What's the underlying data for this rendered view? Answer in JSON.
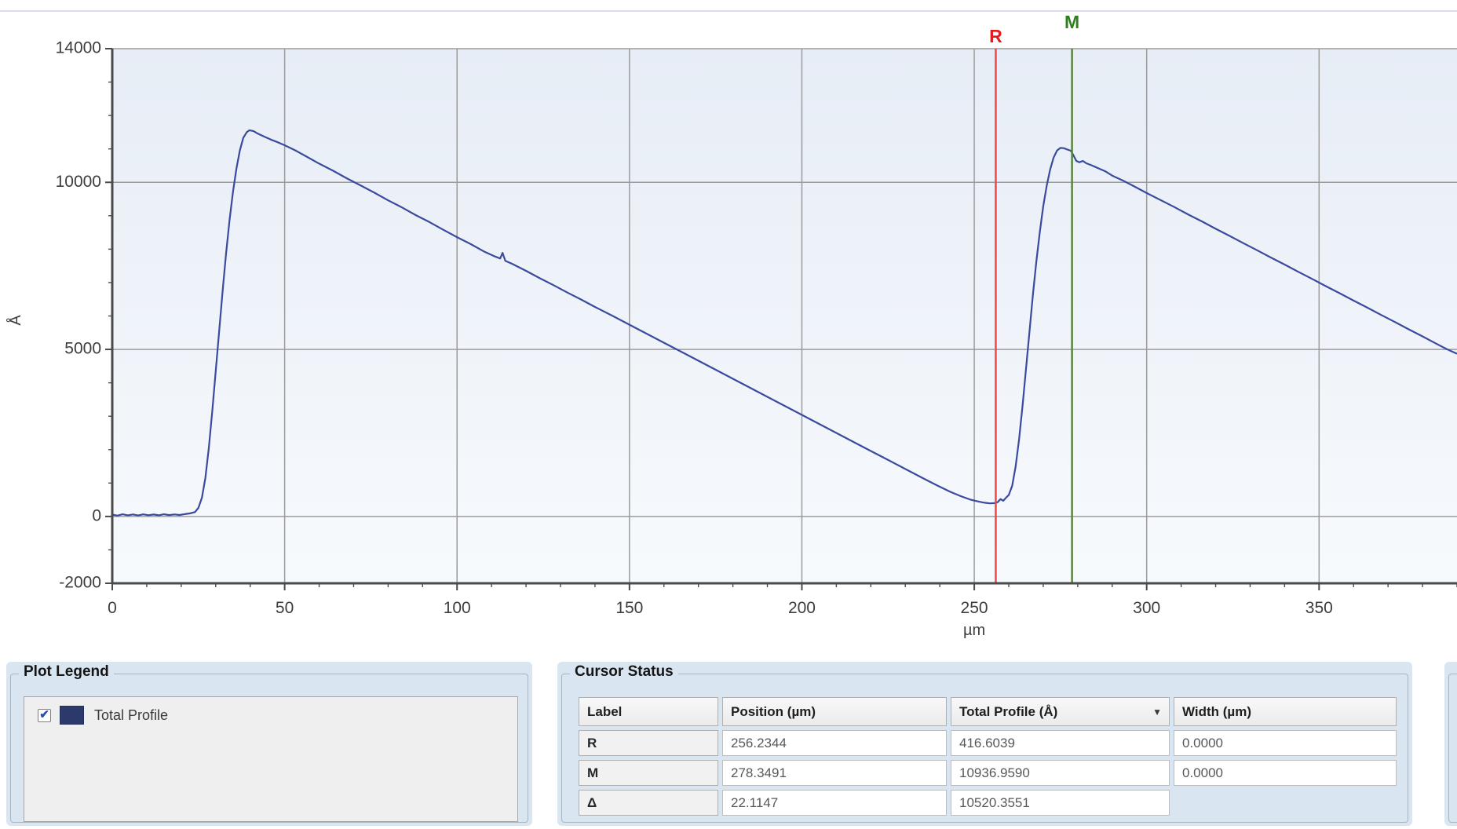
{
  "chart_data": {
    "type": "line",
    "title": "",
    "xlabel": "µm",
    "ylabel": "Å",
    "xlim": [
      0,
      390
    ],
    "ylim": [
      -2000,
      14000
    ],
    "x_major_ticks": [
      0,
      50,
      100,
      150,
      200,
      250,
      300,
      350
    ],
    "x_minor_step": 10,
    "y_major_ticks": [
      -2000,
      0,
      5000,
      10000,
      14000
    ],
    "y_minor_step": 1000,
    "x_gridlines": [
      50,
      100,
      150,
      200,
      250,
      300,
      350
    ],
    "y_gridlines": [
      0,
      5000,
      10000
    ],
    "grid_color": "#9b9b9b",
    "axis_color": "#4a4a4a",
    "plot_bg_top": "#e7edf6",
    "plot_bg_bottom": "#f7fafd",
    "series": [
      {
        "name": "Total Profile",
        "color": "#3a4a9e",
        "points": [
          [
            0,
            55
          ],
          [
            1.5,
            25
          ],
          [
            3,
            65
          ],
          [
            4.5,
            35
          ],
          [
            6,
            60
          ],
          [
            7.5,
            30
          ],
          [
            9,
            62
          ],
          [
            10.5,
            38
          ],
          [
            12,
            58
          ],
          [
            13.5,
            35
          ],
          [
            15,
            65
          ],
          [
            16.5,
            42
          ],
          [
            18,
            60
          ],
          [
            19.5,
            45
          ],
          [
            21,
            70
          ],
          [
            22.5,
            90
          ],
          [
            24,
            130
          ],
          [
            25,
            260
          ],
          [
            26,
            560
          ],
          [
            27,
            1150
          ],
          [
            28,
            2050
          ],
          [
            29,
            3150
          ],
          [
            30,
            4350
          ],
          [
            31,
            5550
          ],
          [
            32,
            6750
          ],
          [
            33,
            7850
          ],
          [
            34,
            8850
          ],
          [
            35,
            9700
          ],
          [
            36,
            10400
          ],
          [
            37,
            10950
          ],
          [
            38,
            11330
          ],
          [
            39,
            11500
          ],
          [
            39.8,
            11560
          ],
          [
            41,
            11530
          ],
          [
            42,
            11470
          ],
          [
            44,
            11370
          ],
          [
            46,
            11280
          ],
          [
            48,
            11200
          ],
          [
            50,
            11110
          ],
          [
            53,
            10960
          ],
          [
            56,
            10790
          ],
          [
            60,
            10560
          ],
          [
            64,
            10350
          ],
          [
            68,
            10120
          ],
          [
            72,
            9910
          ],
          [
            76,
            9690
          ],
          [
            80,
            9460
          ],
          [
            84,
            9250
          ],
          [
            88,
            9020
          ],
          [
            92,
            8810
          ],
          [
            96,
            8580
          ],
          [
            100,
            8360
          ],
          [
            104,
            8150
          ],
          [
            108,
            7920
          ],
          [
            111,
            7780
          ],
          [
            112.5,
            7720
          ],
          [
            113.2,
            7890
          ],
          [
            114,
            7650
          ],
          [
            116,
            7560
          ],
          [
            120,
            7350
          ],
          [
            124,
            7130
          ],
          [
            128,
            6920
          ],
          [
            132,
            6700
          ],
          [
            136,
            6490
          ],
          [
            140,
            6270
          ],
          [
            145,
            6010
          ],
          [
            150,
            5740
          ],
          [
            155,
            5470
          ],
          [
            160,
            5200
          ],
          [
            165,
            4930
          ],
          [
            170,
            4660
          ],
          [
            175,
            4390
          ],
          [
            180,
            4120
          ],
          [
            185,
            3850
          ],
          [
            190,
            3580
          ],
          [
            195,
            3310
          ],
          [
            200,
            3040
          ],
          [
            205,
            2770
          ],
          [
            210,
            2500
          ],
          [
            215,
            2230
          ],
          [
            220,
            1960
          ],
          [
            225,
            1690
          ],
          [
            230,
            1420
          ],
          [
            235,
            1150
          ],
          [
            239,
            940
          ],
          [
            243,
            740
          ],
          [
            246,
            610
          ],
          [
            249,
            500
          ],
          [
            251,
            450
          ],
          [
            253,
            410
          ],
          [
            254.5,
            392
          ],
          [
            256,
            398
          ],
          [
            256.8,
            430
          ],
          [
            257.6,
            520
          ],
          [
            258.4,
            470
          ],
          [
            259.2,
            560
          ],
          [
            260,
            640
          ],
          [
            261,
            920
          ],
          [
            262,
            1500
          ],
          [
            263,
            2320
          ],
          [
            264,
            3320
          ],
          [
            265,
            4420
          ],
          [
            266,
            5530
          ],
          [
            267,
            6620
          ],
          [
            268,
            7620
          ],
          [
            269,
            8500
          ],
          [
            270,
            9280
          ],
          [
            271,
            9890
          ],
          [
            272,
            10380
          ],
          [
            273,
            10740
          ],
          [
            274,
            10950
          ],
          [
            275,
            11030
          ],
          [
            276,
            11020
          ],
          [
            277,
            10980
          ],
          [
            278,
            10945
          ],
          [
            278.8,
            10800
          ],
          [
            279.6,
            10640
          ],
          [
            280.5,
            10600
          ],
          [
            281.5,
            10640
          ],
          [
            282.5,
            10570
          ],
          [
            284,
            10510
          ],
          [
            286,
            10420
          ],
          [
            288,
            10330
          ],
          [
            290,
            10200
          ],
          [
            293,
            10060
          ],
          [
            296,
            9900
          ],
          [
            300,
            9680
          ],
          [
            304,
            9470
          ],
          [
            308,
            9260
          ],
          [
            312,
            9040
          ],
          [
            316,
            8830
          ],
          [
            320,
            8610
          ],
          [
            324,
            8400
          ],
          [
            328,
            8180
          ],
          [
            332,
            7970
          ],
          [
            336,
            7750
          ],
          [
            340,
            7540
          ],
          [
            344,
            7320
          ],
          [
            348,
            7110
          ],
          [
            352,
            6890
          ],
          [
            356,
            6680
          ],
          [
            360,
            6460
          ],
          [
            364,
            6250
          ],
          [
            368,
            6030
          ],
          [
            372,
            5820
          ],
          [
            376,
            5600
          ],
          [
            380,
            5390
          ],
          [
            384,
            5170
          ],
          [
            387,
            5010
          ],
          [
            390,
            4870
          ]
        ]
      }
    ],
    "cursors": [
      {
        "label": "R",
        "x": 256.2344,
        "line_color": "#ed474d",
        "label_color": "#e01b21"
      },
      {
        "label": "M",
        "x": 278.3491,
        "line_color": "#5c8440",
        "label_color": "#2f7d1f"
      }
    ]
  },
  "legend_panel": {
    "title": "Plot Legend",
    "items": [
      {
        "checked": true,
        "check_glyph": "✔",
        "swatch_color": "#2b3a6b",
        "label": "Total Profile"
      }
    ]
  },
  "cursor_panel": {
    "title": "Cursor Status",
    "table": {
      "columns": [
        "Label",
        "Position (µm)",
        "Total Profile (Å)",
        "Width (µm)"
      ],
      "sort_glyph": "▼",
      "rows": [
        {
          "label": "R",
          "position": "256.2344",
          "total_profile": "416.6039",
          "width": "0.0000"
        },
        {
          "label": "M",
          "position": "278.3491",
          "total_profile": "10936.9590",
          "width": "0.0000"
        },
        {
          "label": "Δ",
          "position": "22.1147",
          "total_profile": "10520.3551",
          "width": ""
        }
      ]
    }
  }
}
